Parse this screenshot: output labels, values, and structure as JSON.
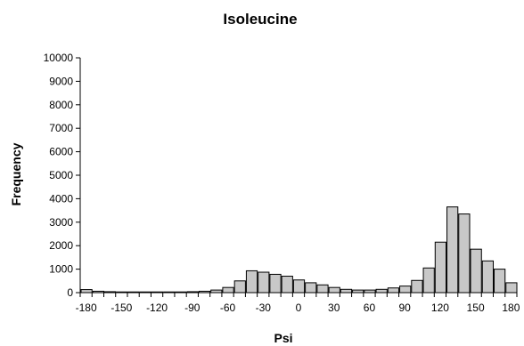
{
  "chart_data": {
    "type": "bar",
    "title": "Isoleucine",
    "xlabel": "Psi",
    "ylabel": "Frequency",
    "ylim": [
      0,
      10000
    ],
    "xlim": [
      -180,
      180
    ],
    "bin_width": 10,
    "y_ticks": [
      0,
      1000,
      2000,
      3000,
      4000,
      5000,
      6000,
      7000,
      8000,
      9000,
      10000
    ],
    "x_ticks": [
      -180,
      -150,
      -120,
      -90,
      -60,
      -30,
      0,
      30,
      60,
      90,
      120,
      150,
      180
    ],
    "grid": false,
    "bar_color": "#c8c8c8",
    "bins": [
      {
        "x": -180,
        "value": 130
      },
      {
        "x": -170,
        "value": 60
      },
      {
        "x": -160,
        "value": 40
      },
      {
        "x": -150,
        "value": 30
      },
      {
        "x": -140,
        "value": 30
      },
      {
        "x": -130,
        "value": 30
      },
      {
        "x": -120,
        "value": 30
      },
      {
        "x": -110,
        "value": 30
      },
      {
        "x": -100,
        "value": 30
      },
      {
        "x": -90,
        "value": 40
      },
      {
        "x": -80,
        "value": 60
      },
      {
        "x": -70,
        "value": 110
      },
      {
        "x": -60,
        "value": 220
      },
      {
        "x": -50,
        "value": 500
      },
      {
        "x": -40,
        "value": 930
      },
      {
        "x": -30,
        "value": 870
      },
      {
        "x": -20,
        "value": 780
      },
      {
        "x": -10,
        "value": 700
      },
      {
        "x": 0,
        "value": 540
      },
      {
        "x": 10,
        "value": 420
      },
      {
        "x": 20,
        "value": 330
      },
      {
        "x": 30,
        "value": 220
      },
      {
        "x": 40,
        "value": 140
      },
      {
        "x": 50,
        "value": 110
      },
      {
        "x": 60,
        "value": 110
      },
      {
        "x": 70,
        "value": 140
      },
      {
        "x": 80,
        "value": 200
      },
      {
        "x": 90,
        "value": 280
      },
      {
        "x": 100,
        "value": 520
      },
      {
        "x": 110,
        "value": 1050
      },
      {
        "x": 120,
        "value": 2150
      },
      {
        "x": 130,
        "value": 3650
      },
      {
        "x": 140,
        "value": 3350
      },
      {
        "x": 150,
        "value": 1850
      },
      {
        "x": 160,
        "value": 1350
      },
      {
        "x": 170,
        "value": 1000
      },
      {
        "x": 180,
        "value": 420
      }
    ]
  }
}
